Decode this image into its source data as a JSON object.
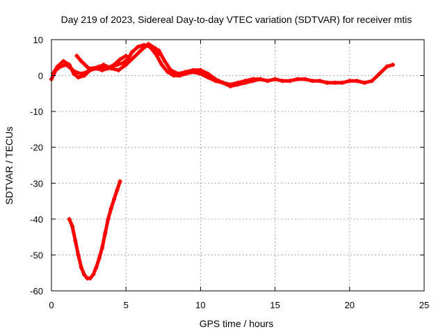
{
  "chart_data": {
    "type": "scatter",
    "title": "Day 219 of 2023, Sidereal Day-to-day VTEC variation (SDTVAR) for receiver mtis",
    "xlabel": "GPS time / hours",
    "ylabel": "SDTVAR / TECUs",
    "xlim": [
      0,
      25
    ],
    "ylim": [
      -60,
      10
    ],
    "xticks": [
      0,
      5,
      10,
      15,
      20,
      25
    ],
    "yticks": [
      10,
      0,
      -10,
      -20,
      -30,
      -40,
      -50,
      -60
    ],
    "grid": true,
    "series_color": "#ff0000",
    "series": [
      {
        "name": "main-track",
        "x": [
          0.0,
          0.3,
          0.6,
          1.0,
          1.3,
          1.6,
          2.0,
          2.4,
          2.8,
          3.2,
          3.6,
          4.0,
          4.4,
          4.8,
          5.1,
          5.4,
          5.8,
          6.2,
          6.6,
          7.0,
          7.4,
          7.8,
          8.2,
          8.6,
          9.0,
          9.5,
          10.0,
          10.5,
          11.0,
          11.5,
          12.0,
          12.5,
          13.0,
          13.5,
          14.0,
          14.5,
          15.0,
          15.5,
          16.0,
          16.5,
          17.0,
          17.5,
          18.0,
          18.5,
          19.0,
          19.5,
          20.0,
          20.5,
          21.0,
          21.5,
          22.0,
          22.5,
          22.9
        ],
        "y": [
          -1.0,
          1.5,
          2.5,
          3.0,
          2.0,
          1.0,
          0.5,
          1.0,
          2.0,
          2.5,
          2.0,
          2.5,
          3.0,
          3.5,
          4.5,
          6.5,
          8.0,
          8.5,
          8.0,
          6.0,
          3.0,
          1.0,
          0.0,
          0.0,
          0.5,
          1.0,
          0.5,
          -0.5,
          -1.5,
          -2.0,
          -2.5,
          -2.0,
          -1.5,
          -1.0,
          -1.0,
          -1.5,
          -1.0,
          -1.5,
          -1.5,
          -1.0,
          -1.0,
          -1.5,
          -1.5,
          -2.0,
          -2.0,
          -2.0,
          -1.5,
          -1.5,
          -2.0,
          -1.5,
          0.5,
          2.5,
          3.0
        ]
      },
      {
        "name": "early-loops",
        "x": [
          0.1,
          0.4,
          0.8,
          1.2,
          1.5,
          1.8,
          2.2,
          2.6,
          3.0,
          3.4,
          3.8,
          4.2,
          4.6,
          5.0
        ],
        "y": [
          0.5,
          2.5,
          4.0,
          3.0,
          0.5,
          -0.5,
          0.0,
          1.5,
          2.0,
          1.5,
          2.0,
          3.0,
          4.5,
          5.5
        ]
      },
      {
        "name": "upper-loop",
        "x": [
          1.7,
          2.0,
          2.5,
          3.0,
          3.5,
          4.0,
          4.5,
          5.0,
          5.5,
          6.0,
          6.5,
          7.0,
          7.2
        ],
        "y": [
          5.5,
          4.0,
          2.0,
          2.0,
          3.0,
          2.0,
          1.5,
          3.0,
          5.0,
          7.0,
          8.8,
          7.5,
          6.0
        ]
      },
      {
        "name": "second-track",
        "x": [
          7.2,
          7.6,
          8.0,
          8.5,
          9.0,
          9.5,
          10.0,
          10.5,
          11.0,
          11.5,
          12.0,
          12.5,
          13.0,
          13.5,
          14.0
        ],
        "y": [
          7.0,
          4.0,
          1.5,
          0.5,
          1.0,
          1.5,
          1.5,
          0.5,
          -1.0,
          -2.0,
          -3.0,
          -2.5,
          -2.0,
          -1.5,
          -1.0
        ]
      },
      {
        "name": "dip",
        "x": [
          1.2,
          1.4,
          1.6,
          1.8,
          2.0,
          2.2,
          2.4,
          2.6,
          2.8,
          3.0,
          3.2,
          3.4,
          3.6,
          3.8,
          4.0,
          4.2,
          4.4,
          4.6
        ],
        "y": [
          -40.0,
          -42.0,
          -46.0,
          -50.0,
          -53.5,
          -55.5,
          -56.5,
          -56.5,
          -55.5,
          -53.5,
          -51.0,
          -48.0,
          -44.0,
          -40.0,
          -37.0,
          -34.5,
          -32.0,
          -29.5
        ]
      }
    ]
  }
}
